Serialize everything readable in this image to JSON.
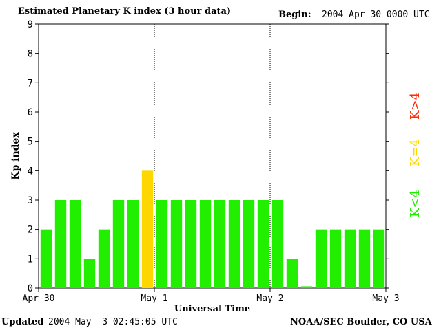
{
  "header": {
    "title": "Estimated Planetary K index (3 hour data)",
    "begin_label": "Begin:",
    "begin_value": "2004 Apr 30 0000 UTC"
  },
  "footer": {
    "updated_label": "Updated",
    "updated_value": "2004 May  3 02:45:05 UTC",
    "credit": "NOAA/SEC Boulder, CO USA"
  },
  "legend": [
    {
      "label": "K>4",
      "color": "#ff2a00"
    },
    {
      "label": "K=4",
      "color": "#ffd700"
    },
    {
      "label": "K<4",
      "color": "#22ee00"
    }
  ],
  "chart_data": {
    "type": "bar",
    "ylabel": "Kp index",
    "xlabel": "Universal Time",
    "ylim": [
      0,
      9
    ],
    "yticks": [
      "0",
      "1",
      "2",
      "3",
      "4",
      "5",
      "6",
      "7",
      "8",
      "9"
    ],
    "xticks": [
      "Apr 30",
      "May 1",
      "May 2",
      "May 3"
    ],
    "day_dividers": [
      "May 1",
      "May 2"
    ],
    "interval_hours": 3,
    "values": [
      2,
      3,
      3,
      1,
      2,
      3,
      3,
      4,
      3,
      3,
      3,
      3,
      3,
      3,
      3,
      3,
      3,
      1,
      0,
      2,
      2,
      2,
      2,
      2
    ],
    "colors": {
      "below4": "#22ee00",
      "equal4": "#ffd700",
      "above4": "#ff2a00"
    }
  }
}
